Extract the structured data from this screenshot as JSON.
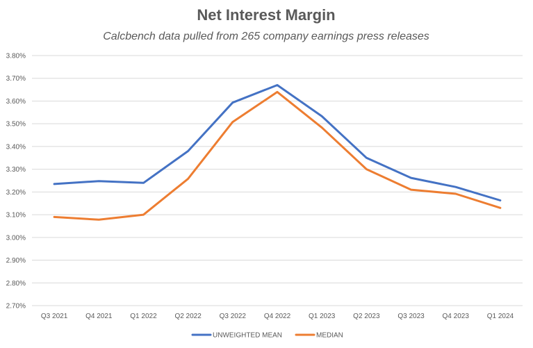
{
  "chart_data": {
    "type": "line",
    "title": "Net Interest Margin",
    "subtitle": "Calcbench data pulled from 265 company earnings press releases",
    "xlabel": "",
    "ylabel": "",
    "categories": [
      "Q3 2021",
      "Q4 2021",
      "Q1 2022",
      "Q2 2022",
      "Q3 2022",
      "Q4 2022",
      "Q1 2023",
      "Q2 2023",
      "Q3 2023",
      "Q4 2023",
      "Q1 2024"
    ],
    "y_ticks": [
      "2.70%",
      "2.80%",
      "2.90%",
      "3.00%",
      "3.10%",
      "3.20%",
      "3.30%",
      "3.40%",
      "3.50%",
      "3.60%",
      "3.70%",
      "3.80%"
    ],
    "ylim": [
      2.7,
      3.8
    ],
    "y_unit": "%",
    "grid": true,
    "legend_position": "bottom",
    "series": [
      {
        "name": "UNWEIGHTED MEAN",
        "color": "#4472c4",
        "values": [
          3.235,
          3.248,
          3.24,
          3.38,
          3.593,
          3.67,
          3.533,
          3.35,
          3.262,
          3.222,
          3.163
        ]
      },
      {
        "name": "MEDIAN",
        "color": "#ed7d31",
        "values": [
          3.09,
          3.078,
          3.1,
          3.258,
          3.508,
          3.64,
          3.483,
          3.3,
          3.21,
          3.192,
          3.13
        ]
      }
    ]
  }
}
